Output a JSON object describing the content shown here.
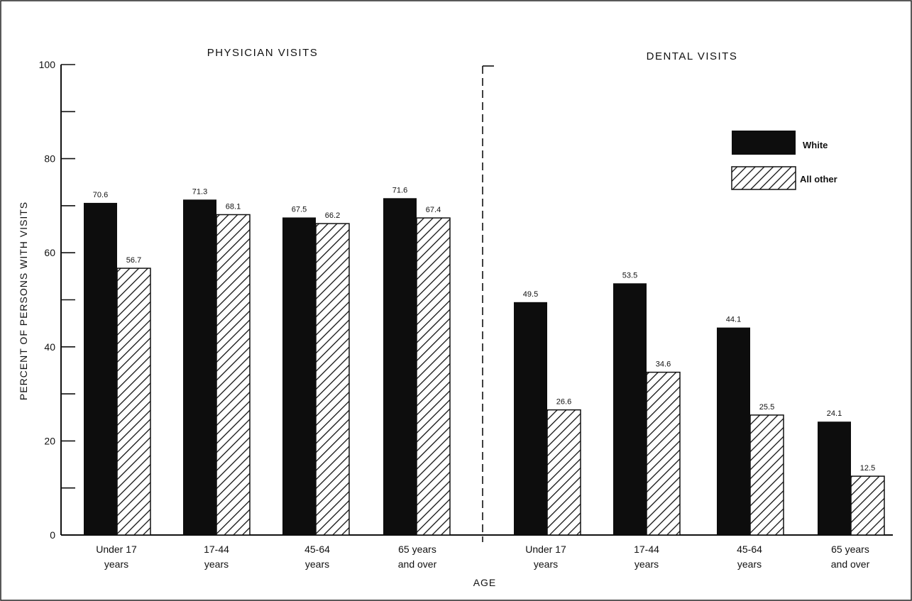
{
  "chart_data": {
    "type": "bar",
    "ylabel": "PERCENT OF PERSONS WITH VISITS",
    "xlabel": "AGE",
    "ylim": [
      0,
      100
    ],
    "y_ticks": [
      "0",
      "20",
      "40",
      "60",
      "80",
      "100"
    ],
    "categories": [
      [
        "Under 17",
        "years"
      ],
      [
        "17-44",
        "years"
      ],
      [
        "45-64",
        "years"
      ],
      [
        "65 years",
        "and over"
      ]
    ],
    "panels": [
      {
        "title": "PHYSICIAN VISITS",
        "series": [
          {
            "name": "White",
            "values": [
              70.6,
              71.3,
              67.5,
              71.6
            ],
            "labels": [
              "70.6",
              "71.3",
              "67.5",
              "71.6"
            ]
          },
          {
            "name": "All other",
            "values": [
              56.7,
              68.1,
              66.2,
              67.4
            ],
            "labels": [
              "56.7",
              "68.1",
              "66.2",
              "67.4"
            ]
          }
        ]
      },
      {
        "title": "DENTAL VISITS",
        "series": [
          {
            "name": "White",
            "values": [
              49.5,
              53.5,
              44.1,
              24.1
            ],
            "labels": [
              "49.5",
              "53.5",
              "44.1",
              "24.1"
            ]
          },
          {
            "name": "All other",
            "values": [
              26.6,
              34.6,
              25.5,
              12.5
            ],
            "labels": [
              "26.6",
              "34.6",
              "25.5",
              "12.5"
            ]
          }
        ]
      }
    ],
    "legend": {
      "position": "top-right",
      "items": [
        {
          "name": "White",
          "style": "solid"
        },
        {
          "name": "All other",
          "style": "hatched"
        }
      ]
    },
    "colors": {
      "solid": "#0d0d0d",
      "hatch_line": "#111111",
      "hatch_bg": "#ffffff"
    },
    "grid": false
  }
}
